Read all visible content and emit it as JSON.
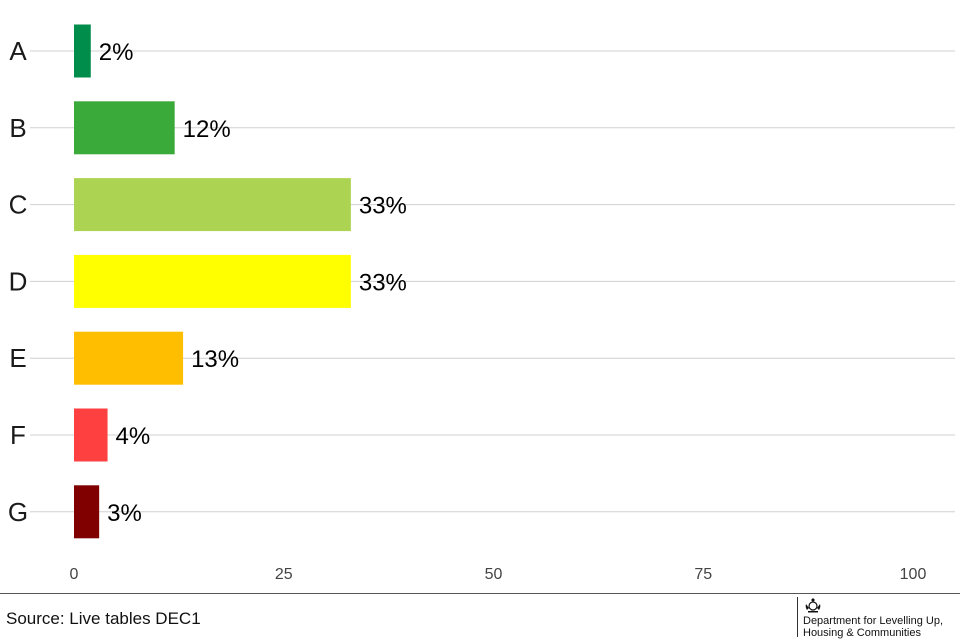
{
  "chart_data": {
    "type": "bar",
    "orientation": "horizontal",
    "categories": [
      "A",
      "B",
      "C",
      "D",
      "E",
      "F",
      "G"
    ],
    "values": [
      2,
      12,
      33,
      33,
      13,
      4,
      3
    ],
    "value_labels": [
      "2%",
      "12%",
      "33%",
      "33%",
      "13%",
      "4%",
      "3%"
    ],
    "colors": [
      "#008c4a",
      "#3aaa3a",
      "#acd452",
      "#ffff00",
      "#ffbf00",
      "#ff4040",
      "#800000"
    ],
    "xlim": [
      0,
      100
    ],
    "xticks": [
      0,
      25,
      50,
      75,
      100
    ],
    "xtick_labels": [
      "0",
      "25",
      "50",
      "75",
      "100"
    ],
    "grid": "horizontal",
    "title": "",
    "xlabel": "",
    "ylabel": ""
  },
  "footer": {
    "source": "Source: Live tables DEC1",
    "logo_line1": "Department for Levelling Up,",
    "logo_line2": "Housing & Communities",
    "logo_icon": "royal-crest-icon"
  }
}
